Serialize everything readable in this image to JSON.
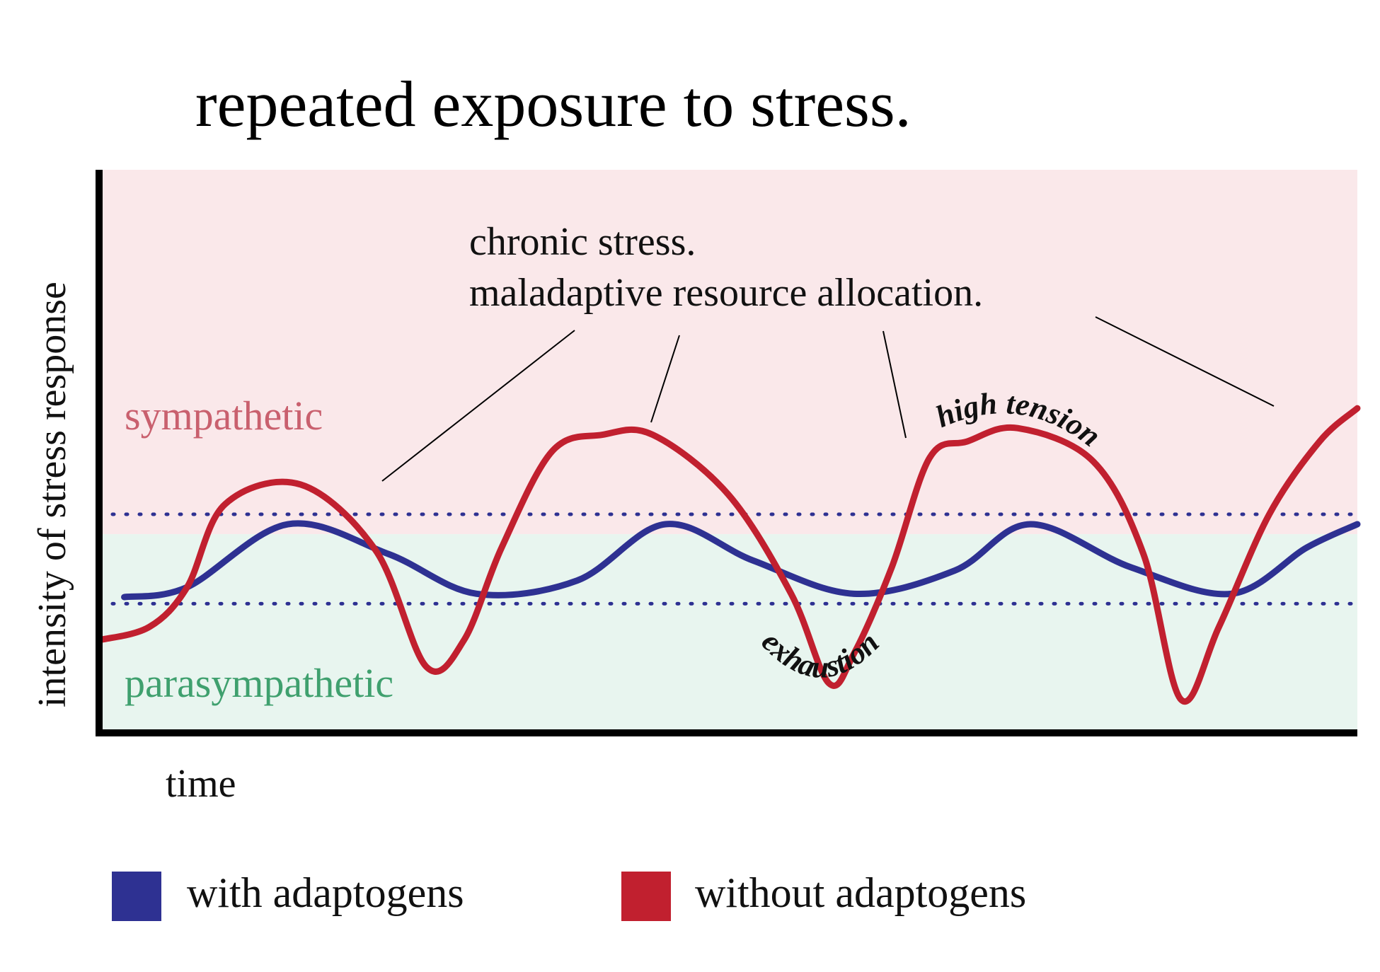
{
  "chart_data": {
    "type": "line",
    "title": "repeated exposure to stress.",
    "xlabel": "time",
    "ylabel": "intensity of stress response",
    "xlim": [
      0,
      10
    ],
    "ylim": [
      -6,
      11
    ],
    "zones": [
      {
        "name": "sympathetic",
        "from": 0,
        "to": 11,
        "color": "#fae8ea",
        "label_color": "#c9606e"
      },
      {
        "name": "parasympathetic",
        "from": -6,
        "to": 0,
        "color": "#e8f5ef",
        "label_color": "#3fa06e"
      }
    ],
    "reference_lines": [
      {
        "y": 0.6,
        "style": "dotted",
        "color": "#2e3192"
      },
      {
        "y": -2.1,
        "style": "dotted",
        "color": "#2e3192"
      }
    ],
    "series": [
      {
        "name": "with adaptogens",
        "color": "#2e3192",
        "x": [
          0.2,
          0.7,
          1.5,
          2.3,
          3.0,
          3.8,
          4.5,
          5.2,
          6.0,
          6.8,
          7.4,
          8.2,
          9.0,
          9.6,
          10
        ],
        "y": [
          -1.9,
          -1.6,
          0.3,
          -0.6,
          -1.8,
          -1.4,
          0.3,
          -0.8,
          -1.8,
          -1.1,
          0.3,
          -1.0,
          -1.8,
          -0.4,
          0.3
        ]
      },
      {
        "name": "without adaptogens",
        "color": "#c1202f",
        "x": [
          0,
          0.4,
          0.7,
          1.0,
          1.6,
          2.2,
          2.6,
          2.9,
          3.2,
          3.6,
          4.0,
          4.4,
          5.0,
          5.5,
          5.8,
          6.0,
          6.3,
          6.6,
          6.9,
          7.3,
          7.9,
          8.3,
          8.6,
          8.9,
          9.3,
          9.7,
          10
        ],
        "y": [
          -3.2,
          -2.8,
          -1.6,
          0.9,
          1.5,
          -0.5,
          -4.0,
          -3.2,
          -0.4,
          2.5,
          3.0,
          3.0,
          1.2,
          -1.8,
          -4.5,
          -3.6,
          -1.0,
          2.3,
          2.8,
          3.2,
          2.2,
          -0.6,
          -5.0,
          -2.8,
          0.6,
          2.8,
          3.8
        ]
      }
    ],
    "annotations": [
      {
        "text": "chronic stress.",
        "line": 1
      },
      {
        "text": "maladaptive resource allocation.",
        "line": 2
      },
      {
        "text": "high tension"
      },
      {
        "text": "exhaustion"
      }
    ],
    "legend_placement": "bottom",
    "grid": false
  }
}
